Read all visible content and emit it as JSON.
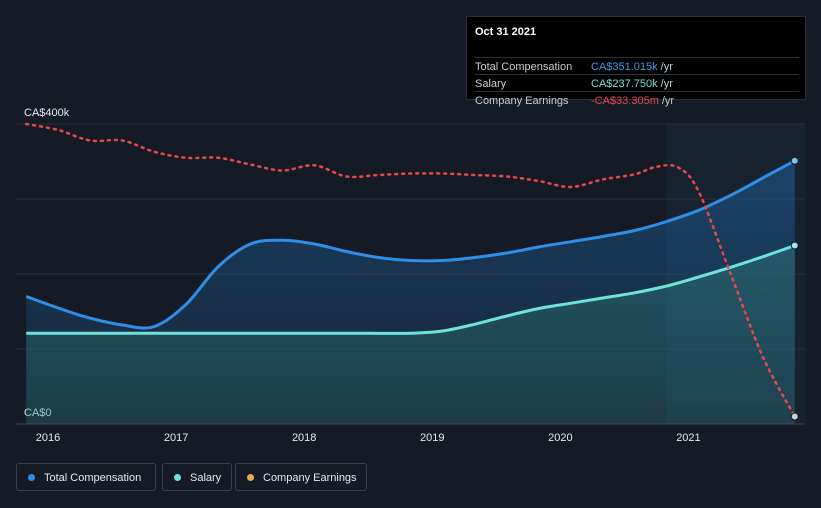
{
  "tooltip": {
    "date": "Oct 31 2021",
    "rows": [
      {
        "label": "Total Compensation",
        "value": "CA$351.015k",
        "unit": "/yr",
        "color": "#3b9ce8"
      },
      {
        "label": "Salary",
        "value": "CA$237.750k",
        "unit": "/yr",
        "color": "#6fe3d9"
      },
      {
        "label": "Company Earnings",
        "value": "-CA$33.305m",
        "unit": "/yr",
        "color": "#e8484a"
      }
    ]
  },
  "legend": [
    {
      "label": "Total Compensation",
      "color": "#2f8fe6"
    },
    {
      "label": "Salary",
      "color": "#6fe3d9"
    },
    {
      "label": "Company Earnings",
      "color": "#e9a957"
    }
  ],
  "chart_data": {
    "type": "line",
    "y_axis_labels": [
      "CA$400k",
      "CA$0"
    ],
    "ylim": [
      0,
      400
    ],
    "x_ticks": [
      "2016",
      "2017",
      "2018",
      "2019",
      "2020",
      "2021"
    ],
    "x_tick_values": [
      2016.0,
      2017.0,
      2018.0,
      2019.0,
      2020.0,
      2021.0
    ],
    "xlim": [
      2015.75,
      2021.91
    ],
    "grid": true,
    "series": [
      {
        "name": "Total Compensation",
        "color": "#2f8fe6",
        "x": [
          2015.83,
          2016.25,
          2016.58,
          2016.83,
          2017.08,
          2017.33,
          2017.58,
          2017.83,
          2018.08,
          2018.33,
          2018.58,
          2018.83,
          2019.08,
          2019.33,
          2019.58,
          2019.83,
          2020.08,
          2020.33,
          2020.58,
          2020.83,
          2021.08,
          2021.33,
          2021.58,
          2021.83
        ],
        "values": [
          170,
          145,
          132,
          130,
          160,
          210,
          240,
          245,
          240,
          230,
          222,
          218,
          218,
          222,
          228,
          236,
          243,
          250,
          258,
          270,
          285,
          305,
          328,
          351
        ]
      },
      {
        "name": "Salary",
        "color": "#6fe3d9",
        "x": [
          2015.83,
          2016.5,
          2017.0,
          2017.5,
          2018.0,
          2018.5,
          2018.83,
          2019.08,
          2019.33,
          2019.58,
          2019.83,
          2020.08,
          2020.33,
          2020.58,
          2020.83,
          2021.08,
          2021.33,
          2021.58,
          2021.83
        ],
        "values": [
          121,
          121,
          121,
          121,
          121,
          121,
          121,
          124,
          133,
          144,
          154,
          161,
          168,
          175,
          184,
          196,
          209,
          223,
          238
        ]
      },
      {
        "name": "Company Earnings",
        "color": "#e8484a",
        "dashed": true,
        "x": [
          2015.83,
          2016.08,
          2016.33,
          2016.58,
          2016.83,
          2017.08,
          2017.33,
          2017.58,
          2017.83,
          2018.08,
          2018.33,
          2018.58,
          2018.83,
          2019.08,
          2019.33,
          2019.58,
          2019.83,
          2020.08,
          2020.33,
          2020.58,
          2020.75,
          2020.92,
          2021.08,
          2021.33,
          2021.58,
          2021.83
        ],
        "values": [
          400,
          392,
          378,
          378,
          363,
          355,
          355,
          346,
          338,
          345,
          330,
          332,
          334,
          334,
          332,
          330,
          324,
          316,
          326,
          333,
          343,
          342,
          310,
          200,
          90,
          10
        ]
      }
    ],
    "highlight_from_x": 2020.83,
    "endpoint_markers": true
  }
}
